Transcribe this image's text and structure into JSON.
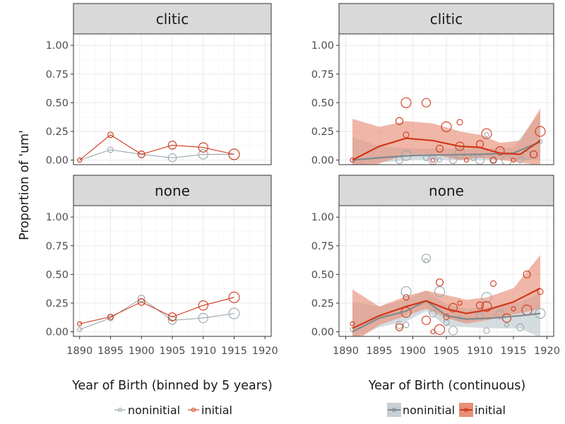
{
  "chart_data": [
    {
      "type": "line",
      "facet": "clitic",
      "x": [
        1890,
        1895,
        1900,
        1905,
        1910,
        1915
      ],
      "series": [
        {
          "name": "noninitial",
          "values": [
            0.0,
            0.09,
            0.05,
            0.02,
            0.05,
            0.05
          ]
        },
        {
          "name": "initial",
          "values": [
            0.0,
            0.22,
            0.05,
            0.13,
            0.11,
            0.05
          ]
        }
      ],
      "xlim": [
        1889,
        1921
      ],
      "ylim": [
        -0.04,
        1.1
      ]
    },
    {
      "type": "line",
      "facet": "none",
      "x": [
        1890,
        1895,
        1900,
        1905,
        1910,
        1915
      ],
      "series": [
        {
          "name": "noninitial",
          "values": [
            0.02,
            0.12,
            0.29,
            0.1,
            0.12,
            0.16
          ]
        },
        {
          "name": "initial",
          "values": [
            0.07,
            0.13,
            0.26,
            0.13,
            0.23,
            0.3
          ]
        }
      ],
      "xlim": [
        1889,
        1921
      ],
      "ylim": [
        -0.04,
        1.1
      ]
    },
    {
      "type": "scatter",
      "facet": "clitic",
      "series": [
        {
          "name": "noninitial",
          "points": [
            [
              1891,
              0.0
            ],
            [
              1898,
              0.0
            ],
            [
              1899,
              0.04
            ],
            [
              1902,
              0.02
            ],
            [
              1903,
              0.0
            ],
            [
              1904,
              0.0
            ],
            [
              1906,
              0.0
            ],
            [
              1907,
              0.06
            ],
            [
              1909,
              0.02
            ],
            [
              1910,
              0.0
            ],
            [
              1911,
              0.22
            ],
            [
              1912,
              0.0
            ],
            [
              1914,
              0.0
            ],
            [
              1916,
              0.0
            ],
            [
              1917,
              0.04
            ],
            [
              1919,
              0.16
            ]
          ],
          "smooth": [
            [
              1891,
              0.0
            ],
            [
              1895,
              0.02
            ],
            [
              1900,
              0.04
            ],
            [
              1905,
              0.045
            ],
            [
              1910,
              0.05
            ],
            [
              1915,
              0.06
            ],
            [
              1919,
              0.16
            ]
          ],
          "band_lo": [
            -0.05,
            -0.02,
            0.0,
            0.0,
            0.0,
            0.0,
            0.0
          ],
          "band_hi": [
            0.2,
            0.12,
            0.1,
            0.1,
            0.1,
            0.11,
            0.42
          ]
        },
        {
          "name": "initial",
          "points": [
            [
              1891,
              0.0
            ],
            [
              1898,
              0.34
            ],
            [
              1899,
              0.5
            ],
            [
              1899,
              0.22
            ],
            [
              1902,
              0.5
            ],
            [
              1903,
              0.0
            ],
            [
              1904,
              0.1
            ],
            [
              1905,
              0.29
            ],
            [
              1907,
              0.33
            ],
            [
              1907,
              0.12
            ],
            [
              1908,
              0.0
            ],
            [
              1910,
              0.14
            ],
            [
              1911,
              0.23
            ],
            [
              1912,
              0.0
            ],
            [
              1913,
              0.08
            ],
            [
              1915,
              0.0
            ],
            [
              1918,
              0.05
            ],
            [
              1919,
              0.25
            ]
          ],
          "smooth": [
            [
              1891,
              0.0
            ],
            [
              1895,
              0.12
            ],
            [
              1899,
              0.19
            ],
            [
              1903,
              0.17
            ],
            [
              1907,
              0.12
            ],
            [
              1910,
              0.11
            ],
            [
              1913,
              0.06
            ],
            [
              1916,
              0.05
            ],
            [
              1919,
              0.17
            ]
          ],
          "band_lo": [
            -0.35,
            -0.03,
            0.05,
            0.05,
            0.0,
            0.02,
            0.0,
            -0.02,
            -0.05
          ],
          "band_hi": [
            0.36,
            0.29,
            0.34,
            0.32,
            0.25,
            0.22,
            0.15,
            0.17,
            0.45
          ]
        }
      ],
      "xlim": [
        1889,
        1921
      ],
      "ylim": [
        -0.04,
        1.1
      ]
    },
    {
      "type": "scatter",
      "facet": "none",
      "series": [
        {
          "name": "noninitial",
          "points": [
            [
              1891,
              0.02
            ],
            [
              1898,
              0.06
            ],
            [
              1899,
              0.35
            ],
            [
              1899,
              0.06
            ],
            [
              1902,
              0.64
            ],
            [
              1902,
              0.62
            ],
            [
              1903,
              0.16
            ],
            [
              1904,
              0.35
            ],
            [
              1905,
              0.08
            ],
            [
              1906,
              0.01
            ],
            [
              1907,
              0.12
            ],
            [
              1910,
              0.14
            ],
            [
              1911,
              0.3
            ],
            [
              1911,
              0.01
            ],
            [
              1913,
              0.15
            ],
            [
              1914,
              0.06
            ],
            [
              1916,
              0.04
            ],
            [
              1919,
              0.16
            ]
          ],
          "smooth": [
            [
              1891,
              0.0
            ],
            [
              1895,
              0.12
            ],
            [
              1899,
              0.18
            ],
            [
              1902,
              0.27
            ],
            [
              1905,
              0.14
            ],
            [
              1908,
              0.11
            ],
            [
              1912,
              0.12
            ],
            [
              1916,
              0.14
            ],
            [
              1919,
              0.16
            ]
          ],
          "band_lo": [
            -0.06,
            0.04,
            0.09,
            0.18,
            0.05,
            0.04,
            0.03,
            0.03,
            -0.05
          ],
          "band_hi": [
            0.26,
            0.22,
            0.28,
            0.36,
            0.24,
            0.2,
            0.22,
            0.26,
            0.34
          ]
        },
        {
          "name": "initial",
          "points": [
            [
              1891,
              0.07
            ],
            [
              1898,
              0.04
            ],
            [
              1899,
              0.17
            ],
            [
              1899,
              0.3
            ],
            [
              1902,
              0.1
            ],
            [
              1903,
              0.0
            ],
            [
              1904,
              0.43
            ],
            [
              1904,
              0.02
            ],
            [
              1905,
              0.13
            ],
            [
              1906,
              0.21
            ],
            [
              1907,
              0.25
            ],
            [
              1910,
              0.23
            ],
            [
              1911,
              0.22
            ],
            [
              1912,
              0.42
            ],
            [
              1914,
              0.12
            ],
            [
              1915,
              0.2
            ],
            [
              1917,
              0.5
            ],
            [
              1917,
              0.19
            ],
            [
              1919,
              0.35
            ]
          ],
          "smooth": [
            [
              1891,
              0.03
            ],
            [
              1895,
              0.14
            ],
            [
              1899,
              0.22
            ],
            [
              1902,
              0.27
            ],
            [
              1905,
              0.2
            ],
            [
              1908,
              0.16
            ],
            [
              1911,
              0.19
            ],
            [
              1915,
              0.26
            ],
            [
              1919,
              0.38
            ]
          ],
          "band_lo": [
            -0.1,
            0.06,
            0.14,
            0.2,
            0.12,
            0.07,
            0.1,
            0.15,
            0.2
          ],
          "band_hi": [
            0.37,
            0.22,
            0.31,
            0.36,
            0.32,
            0.28,
            0.3,
            0.38,
            0.67
          ]
        }
      ],
      "xlim": [
        1889,
        1921
      ],
      "ylim": [
        -0.04,
        1.1
      ]
    }
  ],
  "layout_text": {
    "y_axis_title": "Proportion of 'um'",
    "x_axis_title_left": "Year of Birth (binned by 5 years)",
    "x_axis_title_right": "Year of Birth (continuous)",
    "facet_clitic": "clitic",
    "facet_none": "none",
    "legend_noninitial": "noninitial",
    "legend_initial": "initial"
  },
  "x_ticks": [
    "1890",
    "1895",
    "1900",
    "1905",
    "1910",
    "1915",
    "1920"
  ],
  "y_ticks": [
    "0.00",
    "0.25",
    "0.50",
    "0.75",
    "1.00"
  ],
  "colors": {
    "noninitial": "#9aa8ad",
    "initial": "#d0381a",
    "band_noninitial": "#c6d0d4",
    "band_initial": "#e8907a",
    "grid": "#ebebeb",
    "strip_bg": "#d9d9d9"
  }
}
